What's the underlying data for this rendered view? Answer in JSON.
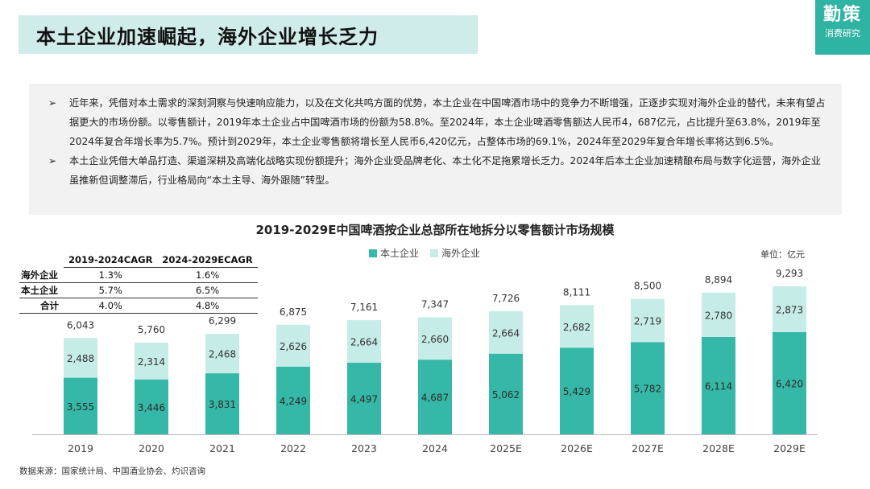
{
  "header": {
    "title": "本土企业加速崛起，海外企业增长乏力"
  },
  "logo": {
    "main": "勤策",
    "sub": "消费研究"
  },
  "summary": {
    "bullet_marker": "➢",
    "bullets": [
      "近年来，凭借对本土需求的深刻洞察与快速响应能力，以及在文化共鸣方面的优势，本土企业在中国啤酒市场中的竞争力不断增强，正逐步实现对海外企业的替代，未来有望占据更大的市场份额。以零售额计，2019年本土企业占中国啤酒市场的份额为58.8%。至2024年，本土企业啤酒零售额达人民币4，687亿元，占比提升至63.8%，2019年至2024年复合年增长率为5.7%。预计到2029年，本土企业零售额将增长至人民币6,420亿元，占整体市场的69.1%，2024年至2029年复合年增长率将达到6.5%。",
      "本土企业凭借大单品打造、渠道深耕及高端化战略实现份额提升；海外企业受品牌老化、本土化不足拖累增长乏力。2024年后本土企业加速精酿布局与数字化运营，海外企业虽推新但调整滞后，行业格局向“本土主导、海外跟随”转型。"
    ]
  },
  "cagr_table": {
    "headers": [
      "",
      "2019-2024CAGR",
      "2024-2029ECAGR"
    ],
    "rows": [
      {
        "label": "海外企业",
        "v1": "1.3%",
        "v2": "1.6%"
      },
      {
        "label": "本土企业",
        "v1": "5.7%",
        "v2": "6.5%"
      },
      {
        "label": "合计",
        "v1": "4.0%",
        "v2": "4.8%"
      }
    ]
  },
  "unit": "单位：亿元",
  "source": "数据来源：国家统计局、中国酒业协会、灼识咨询",
  "colors": {
    "local": "#35b8a7",
    "foreign": "#c6ece7",
    "title_bg": "#cfeceb",
    "logo_bg": "#2fb3a3"
  },
  "chart_data": {
    "type": "bar",
    "stacked": true,
    "title": "2019-2029E中国啤酒按企业总部所在地拆分以零售额计市场规模",
    "categories": [
      "2019",
      "2020",
      "2021",
      "2022",
      "2023",
      "2024",
      "2025E",
      "2026E",
      "2027E",
      "2028E",
      "2029E"
    ],
    "series": [
      {
        "name": "本土企业",
        "values": [
          3555,
          3446,
          3831,
          4249,
          4497,
          4687,
          5062,
          5429,
          5782,
          6114,
          6420
        ]
      },
      {
        "name": "海外企业",
        "values": [
          2488,
          2314,
          2468,
          2626,
          2664,
          2660,
          2664,
          2682,
          2719,
          2780,
          2873
        ]
      }
    ],
    "totals": [
      6043,
      5760,
      6299,
      6875,
      7161,
      7347,
      7726,
      8111,
      8500,
      8894,
      9293
    ],
    "total_labels": [
      "6,043",
      "5,760",
      "6,299",
      "6,875",
      "7,161",
      "7,347",
      "7,726",
      "8,111",
      "8,500",
      "8,894",
      "9,293"
    ],
    "local_labels": [
      "3,555",
      "3,446",
      "3,831",
      "4,249",
      "4,497",
      "4,687",
      "5,062",
      "5,429",
      "5,782",
      "6,114",
      "6,420"
    ],
    "foreign_labels": [
      "2,488",
      "2,314",
      "2,468",
      "2,626",
      "2,664",
      "2,660",
      "2,664",
      "2,682",
      "2,719",
      "2,780",
      "2,873"
    ],
    "ylim": [
      0,
      10500
    ],
    "legend_position": "top-center",
    "grid": false
  }
}
